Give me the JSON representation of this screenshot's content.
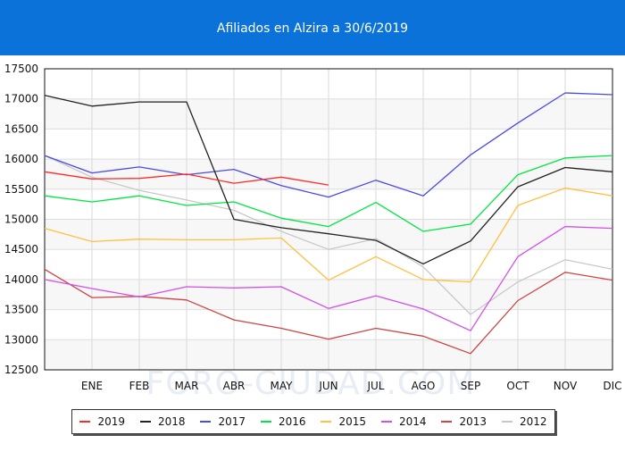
{
  "header": {
    "title": "Afiliados en Alzira a 30/6/2019",
    "bg_color": "#0a72d8"
  },
  "watermark": "FORO-CIUDAD.COM",
  "chart_data": {
    "type": "line",
    "title": "Afiliados en Alzira a 30/6/2019",
    "xlabel": "",
    "ylabel": "",
    "categories": [
      "",
      "ENE",
      "FEB",
      "MAR",
      "ABR",
      "MAY",
      "JUN",
      "JUL",
      "AGO",
      "SEP",
      "OCT",
      "NOV",
      "DIC"
    ],
    "ylim": [
      12500,
      17500
    ],
    "yticks": [
      12500,
      13000,
      13500,
      14000,
      14500,
      15000,
      15500,
      16000,
      16500,
      17000,
      17500
    ],
    "grid": true,
    "legend_position": "bottom",
    "series": [
      {
        "name": "2019",
        "color": "#ff2a2a",
        "values": [
          15790,
          15670,
          15680,
          15750,
          15600,
          15700,
          15570,
          null,
          null,
          null,
          null,
          null,
          null
        ]
      },
      {
        "name": "2018",
        "color": "#222222",
        "values": [
          17060,
          16880,
          16950,
          16950,
          15000,
          14860,
          14760,
          14650,
          14260,
          14640,
          15540,
          15860,
          15790
        ]
      },
      {
        "name": "2017",
        "color": "#4a4ae6",
        "values": [
          16060,
          15770,
          15870,
          15740,
          15830,
          15560,
          15370,
          15650,
          15390,
          16070,
          16600,
          17100,
          17070
        ]
      },
      {
        "name": "2016",
        "color": "#00e640",
        "values": [
          15390,
          15290,
          15390,
          15230,
          15290,
          15020,
          14880,
          15280,
          14800,
          14920,
          15740,
          16020,
          16060
        ]
      },
      {
        "name": "2015",
        "color": "#ffc040",
        "values": [
          14850,
          14630,
          14670,
          14660,
          14660,
          14690,
          13990,
          14380,
          14000,
          13960,
          15230,
          15520,
          15390
        ]
      },
      {
        "name": "2014",
        "color": "#d050e8",
        "values": [
          14000,
          13850,
          13710,
          13880,
          13860,
          13880,
          13520,
          13730,
          13510,
          13150,
          14380,
          14880,
          14850
        ]
      },
      {
        "name": "2013",
        "color": "#cc4444",
        "values": [
          14170,
          13700,
          13720,
          13660,
          13330,
          13190,
          13010,
          13190,
          13060,
          12770,
          13650,
          14120,
          13990
        ]
      },
      {
        "name": "2012",
        "color": "#c8c8c8",
        "values": [
          16060,
          15700,
          15480,
          15320,
          15150,
          14800,
          14500,
          14680,
          14210,
          13420,
          13960,
          14330,
          14170
        ]
      }
    ]
  }
}
